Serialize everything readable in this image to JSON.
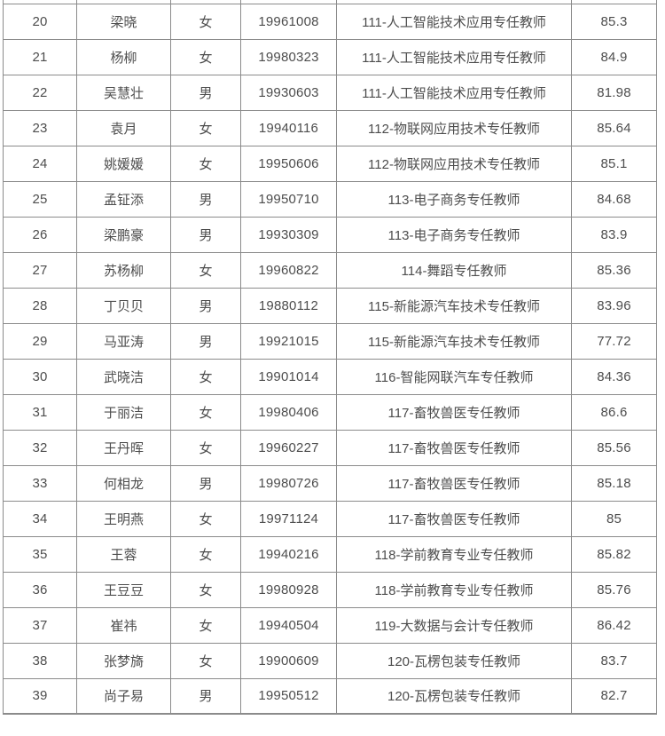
{
  "colors": {
    "border": "#8b8b8b",
    "text": "#4d4d4d",
    "background": "#ffffff"
  },
  "table": {
    "rows": [
      {
        "no": "20",
        "name": "梁晓",
        "gender": "女",
        "birth": "19961008",
        "position": "111-人工智能技术应用专任教师",
        "score": "85.3"
      },
      {
        "no": "21",
        "name": "杨柳",
        "gender": "女",
        "birth": "19980323",
        "position": "111-人工智能技术应用专任教师",
        "score": "84.9"
      },
      {
        "no": "22",
        "name": "吴慧壮",
        "gender": "男",
        "birth": "19930603",
        "position": "111-人工智能技术应用专任教师",
        "score": "81.98"
      },
      {
        "no": "23",
        "name": "袁月",
        "gender": "女",
        "birth": "19940116",
        "position": "112-物联网应用技术专任教师",
        "score": "85.64"
      },
      {
        "no": "24",
        "name": "姚媛媛",
        "gender": "女",
        "birth": "19950606",
        "position": "112-物联网应用技术专任教师",
        "score": "85.1"
      },
      {
        "no": "25",
        "name": "孟钲添",
        "gender": "男",
        "birth": "19950710",
        "position": "113-电子商务专任教师",
        "score": "84.68"
      },
      {
        "no": "26",
        "name": "梁鹏豪",
        "gender": "男",
        "birth": "19930309",
        "position": "113-电子商务专任教师",
        "score": "83.9"
      },
      {
        "no": "27",
        "name": "苏杨柳",
        "gender": "女",
        "birth": "19960822",
        "position": "114-舞蹈专任教师",
        "score": "85.36"
      },
      {
        "no": "28",
        "name": "丁贝贝",
        "gender": "男",
        "birth": "19880112",
        "position": "115-新能源汽车技术专任教师",
        "score": "83.96"
      },
      {
        "no": "29",
        "name": "马亚涛",
        "gender": "男",
        "birth": "19921015",
        "position": "115-新能源汽车技术专任教师",
        "score": "77.72"
      },
      {
        "no": "30",
        "name": "武晓洁",
        "gender": "女",
        "birth": "19901014",
        "position": "116-智能网联汽车专任教师",
        "score": "84.36"
      },
      {
        "no": "31",
        "name": "于丽洁",
        "gender": "女",
        "birth": "19980406",
        "position": "117-畜牧兽医专任教师",
        "score": "86.6"
      },
      {
        "no": "32",
        "name": "王丹晖",
        "gender": "女",
        "birth": "19960227",
        "position": "117-畜牧兽医专任教师",
        "score": "85.56"
      },
      {
        "no": "33",
        "name": "何相龙",
        "gender": "男",
        "birth": "19980726",
        "position": "117-畜牧兽医专任教师",
        "score": "85.18"
      },
      {
        "no": "34",
        "name": "王明燕",
        "gender": "女",
        "birth": "19971124",
        "position": "117-畜牧兽医专任教师",
        "score": "85"
      },
      {
        "no": "35",
        "name": "王蓉",
        "gender": "女",
        "birth": "19940216",
        "position": "118-学前教育专业专任教师",
        "score": "85.82"
      },
      {
        "no": "36",
        "name": "王豆豆",
        "gender": "女",
        "birth": "19980928",
        "position": "118-学前教育专业专任教师",
        "score": "85.76"
      },
      {
        "no": "37",
        "name": "崔祎",
        "gender": "女",
        "birth": "19940504",
        "position": "119-大数据与会计专任教师",
        "score": "86.42"
      },
      {
        "no": "38",
        "name": "张梦旖",
        "gender": "女",
        "birth": "19900609",
        "position": "120-瓦楞包装专任教师",
        "score": "83.7"
      },
      {
        "no": "39",
        "name": "尚子易",
        "gender": "男",
        "birth": "19950512",
        "position": "120-瓦楞包装专任教师",
        "score": "82.7"
      }
    ]
  }
}
